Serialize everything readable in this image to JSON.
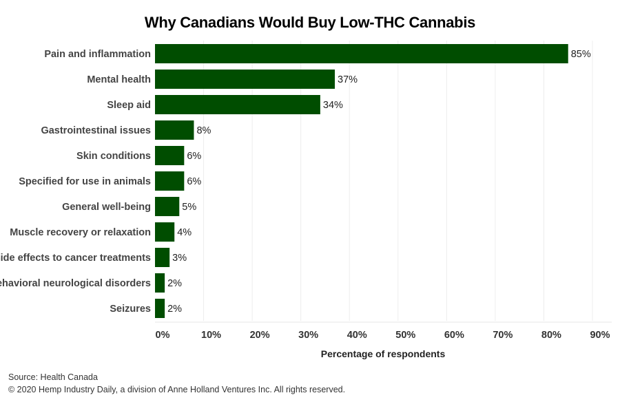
{
  "chart_data": {
    "type": "bar",
    "orientation": "horizontal",
    "title": "Why Canadians Would Buy Low-THC Cannabis",
    "xlabel": "Percentage of respondents",
    "ylabel": "",
    "xlim": [
      0,
      90
    ],
    "x_ticks": [
      0,
      10,
      20,
      30,
      40,
      50,
      60,
      70,
      80,
      90
    ],
    "x_tick_labels": [
      "0%",
      "10%",
      "20%",
      "30%",
      "40%",
      "50%",
      "60%",
      "70%",
      "80%",
      "90%"
    ],
    "grid": true,
    "categories": [
      "Pain and inflammation",
      "Mental health",
      "Sleep aid",
      "Gastrointestinal issues",
      "Skin conditions",
      "Specified for use in animals",
      "General well-being",
      "Muscle recovery or relaxation",
      "Side effects to cancer treatments",
      "Behavioral neurological disorders",
      "Seizures"
    ],
    "values": [
      85,
      37,
      34,
      8,
      6,
      6,
      5,
      4,
      3,
      2,
      2
    ],
    "value_labels": [
      "85%",
      "37%",
      "34%",
      "8%",
      "6%",
      "6%",
      "5%",
      "4%",
      "3%",
      "2%",
      "2%"
    ],
    "bar_color": "#004d00"
  },
  "footer": {
    "source": "Source: Health Canada",
    "copyright": "© 2020 Hemp Industry Daily, a division of Anne Holland Ventures Inc. All rights reserved."
  }
}
